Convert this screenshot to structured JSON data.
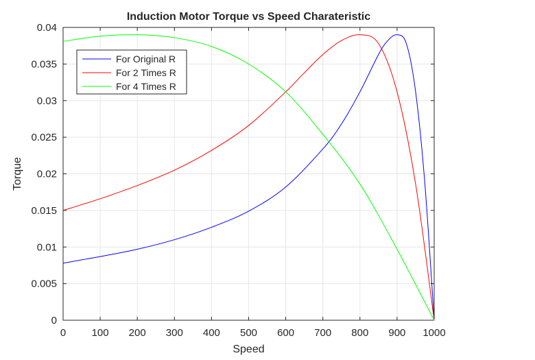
{
  "chart_data": {
    "type": "line",
    "title": "Induction Motor Torque vs Speed Charateristic",
    "xlabel": "Speed",
    "ylabel": "Torque",
    "xlim": [
      0,
      1000
    ],
    "ylim": [
      0,
      0.04
    ],
    "xticks": [
      0,
      100,
      200,
      300,
      400,
      500,
      600,
      700,
      800,
      900,
      1000
    ],
    "xtick_labels": [
      "0",
      "100",
      "200",
      "300",
      "400",
      "500",
      "600",
      "700",
      "800",
      "900",
      "1000"
    ],
    "yticks": [
      0,
      0.005,
      0.01,
      0.015,
      0.02,
      0.025,
      0.03,
      0.035,
      0.04
    ],
    "ytick_labels": [
      "0",
      "0.005",
      "0.01",
      "0.015",
      "0.02",
      "0.025",
      "0.03",
      "0.035",
      "0.04"
    ],
    "grid": true,
    "legend_position": "top-left",
    "series": [
      {
        "name": "For Original R",
        "color": "#0000ff",
        "x": [
          0,
          100,
          200,
          300,
          400,
          500,
          600,
          700,
          750,
          800,
          850,
          875,
          900,
          925,
          950,
          975,
          1000
        ],
        "y": [
          0.0078,
          0.0087,
          0.0097,
          0.011,
          0.0127,
          0.0149,
          0.0182,
          0.0234,
          0.0268,
          0.0312,
          0.0363,
          0.0382,
          0.039,
          0.0378,
          0.0312,
          0.0186,
          0.0
        ]
      },
      {
        "name": "For 2 Times R",
        "color": "#ff0000",
        "x": [
          0,
          100,
          200,
          300,
          400,
          500,
          600,
          650,
          700,
          750,
          800,
          850,
          900,
          950,
          1000
        ],
        "y": [
          0.015,
          0.0166,
          0.0184,
          0.0205,
          0.0232,
          0.0266,
          0.0312,
          0.0338,
          0.0363,
          0.0382,
          0.039,
          0.0378,
          0.0312,
          0.0186,
          0.0
        ]
      },
      {
        "name": "For 4 Times R",
        "color": "#00ff00",
        "x": [
          0,
          100,
          200,
          300,
          400,
          500,
          600,
          700,
          800,
          900,
          1000
        ],
        "y": [
          0.0381,
          0.0388,
          0.039,
          0.0386,
          0.0374,
          0.035,
          0.0312,
          0.0254,
          0.0186,
          0.0097,
          0.0
        ]
      }
    ]
  }
}
